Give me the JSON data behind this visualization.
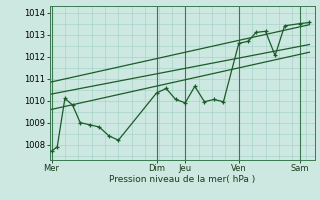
{
  "xlabel": "Pression niveau de la mer( hPa )",
  "bg_color": "#cce8e0",
  "grid_color": "#9ecfc4",
  "line_color": "#1a5c28",
  "ylim": [
    1007.3,
    1014.3
  ],
  "yticks": [
    1008,
    1009,
    1010,
    1011,
    1012,
    1013,
    1014
  ],
  "day_labels": [
    "Mer",
    "Dim",
    "Jeu",
    "Ven",
    "Sam"
  ],
  "day_positions": [
    0,
    5.5,
    7.0,
    9.8,
    13.0
  ],
  "series1_x": [
    0,
    0.3,
    0.7,
    1.1,
    1.5,
    2.0,
    2.5,
    3.0,
    3.5,
    5.5,
    6.0,
    6.5,
    7.0,
    7.5,
    8.0,
    8.5,
    9.0,
    9.8,
    10.3,
    10.7,
    11.2,
    11.7,
    12.2,
    13.0,
    13.5
  ],
  "series1_y": [
    1007.7,
    1007.9,
    1010.1,
    1009.8,
    1009.0,
    1008.9,
    1008.8,
    1008.4,
    1008.2,
    1010.35,
    1010.55,
    1010.05,
    1009.9,
    1010.65,
    1009.95,
    1010.05,
    1009.95,
    1012.6,
    1012.7,
    1013.1,
    1013.15,
    1012.05,
    1013.4,
    1013.5,
    1013.55
  ],
  "series2_x": [
    0,
    13.5
  ],
  "series2_y": [
    1009.6,
    1012.2
  ],
  "series3_x": [
    0,
    13.5
  ],
  "series3_y": [
    1010.3,
    1012.55
  ],
  "series4_x": [
    0,
    13.5
  ],
  "series4_y": [
    1010.85,
    1013.45
  ],
  "xlim": [
    -0.1,
    13.8
  ],
  "vline_color": "#3a7a50"
}
